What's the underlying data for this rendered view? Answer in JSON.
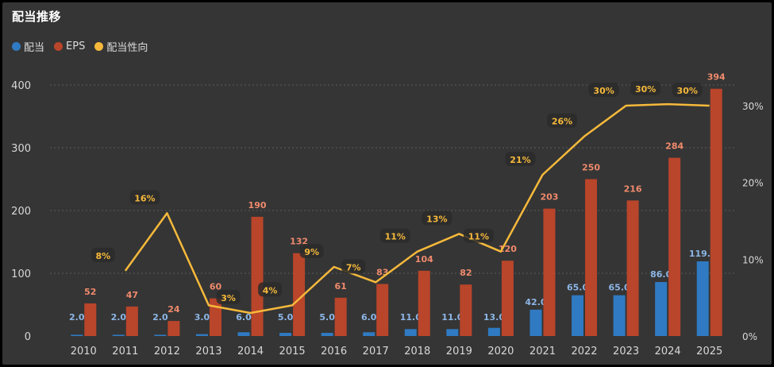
{
  "title": "配当推移",
  "legend": [
    {
      "label": "配当",
      "color": "#2f7ac2"
    },
    {
      "label": "EPS",
      "color": "#b9452a"
    },
    {
      "label": "配当性向",
      "color": "#f6b93b"
    }
  ],
  "colors": {
    "background": "#353535",
    "dividend": "#2f7ac2",
    "dividend_label": "#8cb6e6",
    "eps": "#b9452a",
    "eps_label": "#f08a6c",
    "payout": "#f6b93b",
    "payout_label": "#f6b93b",
    "axis_text": "#d8d8d8",
    "grid": "#5a5a5a"
  },
  "chart_data": {
    "type": "bar",
    "categories": [
      "2010",
      "2011",
      "2012",
      "2013",
      "2014",
      "2015",
      "2016",
      "2017",
      "2018",
      "2019",
      "2020",
      "2021",
      "2022",
      "2023",
      "2024",
      "2025"
    ],
    "series": [
      {
        "name": "配当",
        "type": "bar",
        "axis": "left",
        "values": [
          2.0,
          2.0,
          2.0,
          3.0,
          6.0,
          5.0,
          5.0,
          6.0,
          11.0,
          11.0,
          13.0,
          42.0,
          65.0,
          65.0,
          86.0,
          119.0
        ],
        "labels": [
          "2.0",
          "2.0",
          "2.0",
          "3.0",
          "6.0",
          "5.0",
          "5.0",
          "6.0",
          "11.0",
          "11.0",
          "13.0",
          "42.0",
          "65.0",
          "65.0",
          "86.0",
          "119.0"
        ]
      },
      {
        "name": "EPS",
        "type": "bar",
        "axis": "left",
        "values": [
          52,
          47,
          24,
          60,
          190,
          132,
          61,
          83,
          104,
          82,
          120,
          203,
          250,
          216,
          284,
          394
        ],
        "labels": [
          "52",
          "47",
          "24",
          "60",
          "190",
          "132",
          "61",
          "83",
          "104",
          "82",
          "120",
          "203",
          "250",
          "216",
          "284",
          "394"
        ]
      },
      {
        "name": "配当性向",
        "type": "line",
        "axis": "right",
        "values": [
          null,
          8.5,
          16,
          4,
          3,
          4,
          9,
          7,
          11,
          13.3,
          11,
          21,
          26,
          30,
          30.2,
          30
        ],
        "labels": [
          "",
          "8%",
          "16%",
          "",
          "3%",
          "4%",
          "9%",
          "7%",
          "11%",
          "13%",
          "11%",
          "21%",
          "26%",
          "30%",
          "30%",
          "30%"
        ]
      }
    ],
    "left_axis": {
      "ticks": [
        "0",
        "100",
        "200",
        "300",
        "400"
      ],
      "tick_values": [
        0,
        100,
        200,
        300,
        400
      ],
      "range": [
        0,
        400
      ]
    },
    "right_axis": {
      "ticks": [
        "0%",
        "10%",
        "20%",
        "30%"
      ],
      "tick_values": [
        0,
        10,
        20,
        30
      ],
      "range": [
        0,
        33
      ]
    },
    "legend_position": "top-left",
    "grid": true
  }
}
